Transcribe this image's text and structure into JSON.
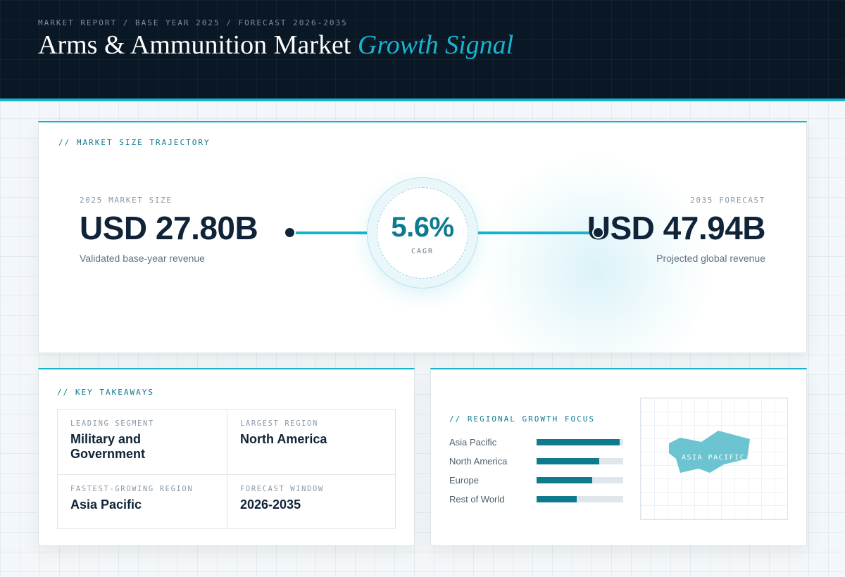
{
  "header": {
    "kicker": "MARKET REPORT / BASE YEAR 2025 / FORECAST 2026-2035",
    "title": "Arms & Ammunition Market",
    "title_accent": "Growth Signal"
  },
  "trajectory": {
    "section_label": "// MARKET SIZE TRAJECTORY",
    "base": {
      "label": "2025 MARKET SIZE",
      "value": "USD 27.80B",
      "caption": "Validated base-year revenue"
    },
    "cagr": {
      "value": "5.6%",
      "label": "CAGR"
    },
    "forecast": {
      "label": "2035 FORECAST",
      "value": "USD 47.94B",
      "caption": "Projected global revenue"
    }
  },
  "takeaways": {
    "section_label": "// KEY TAKEAWAYS",
    "items": [
      {
        "label": "LEADING SEGMENT",
        "value": "Military and Government"
      },
      {
        "label": "LARGEST REGION",
        "value": "North America"
      },
      {
        "label": "FASTEST-GROWING REGION",
        "value": "Asia Pacific"
      },
      {
        "label": "FORECAST WINDOW",
        "value": "2026-2035"
      }
    ]
  },
  "regional": {
    "section_label": "// REGIONAL GROWTH FOCUS",
    "bars": [
      {
        "name": "Asia Pacific",
        "level": 0.96
      },
      {
        "name": "North America",
        "level": 0.72
      },
      {
        "name": "Europe",
        "level": 0.64
      },
      {
        "name": "Rest of World",
        "level": 0.46
      }
    ],
    "map_label": "ASIA PACIFIC"
  },
  "colors": {
    "accent": "#16b3cf",
    "teal": "#0d7a8e",
    "navy": "#0a1825",
    "map_fill": "#6cc4d0"
  }
}
